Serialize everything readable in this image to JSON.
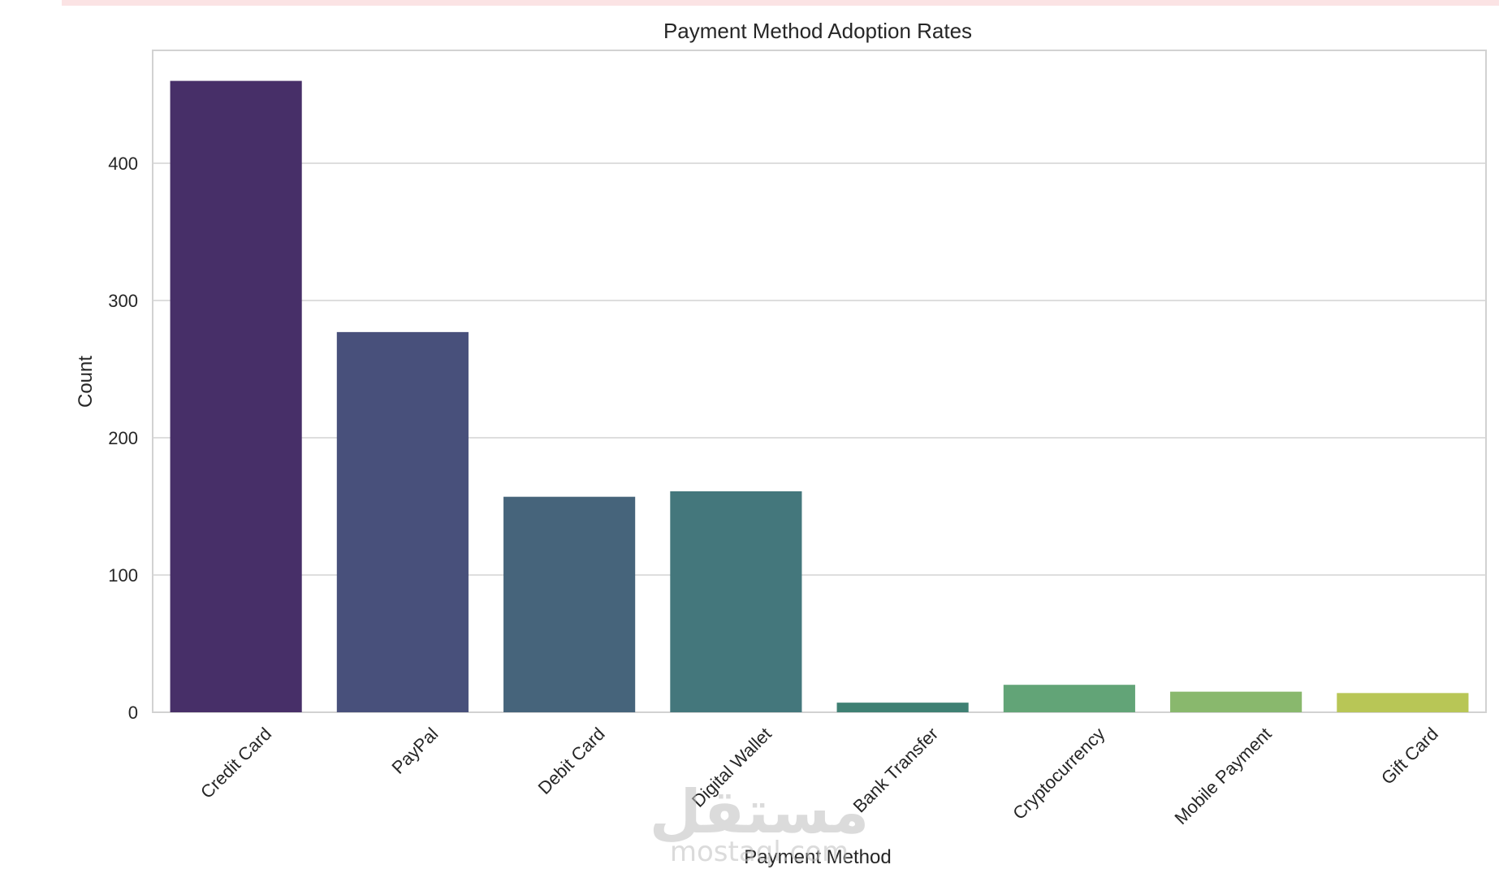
{
  "chart_data": {
    "type": "bar",
    "title": "Payment Method Adoption Rates",
    "xlabel": "Payment Method",
    "ylabel": "Count",
    "categories": [
      "Credit Card",
      "PayPal",
      "Debit Card",
      "Digital Wallet",
      "Bank Transfer",
      "Cryptocurrency",
      "Mobile Payment",
      "Gift Card"
    ],
    "values": [
      460,
      277,
      157,
      161,
      7,
      20,
      15,
      14
    ],
    "colors": [
      "#472f68",
      "#48507b",
      "#46647b",
      "#44777c",
      "#3f8073",
      "#62a477",
      "#89b86d",
      "#b8c656"
    ],
    "ylim": [
      0,
      480
    ],
    "yticks": [
      0,
      100,
      200,
      300,
      400
    ],
    "grid": true,
    "legend": "none"
  },
  "watermark": {
    "arabic": "مستقل",
    "latin": "mostaql.com"
  }
}
